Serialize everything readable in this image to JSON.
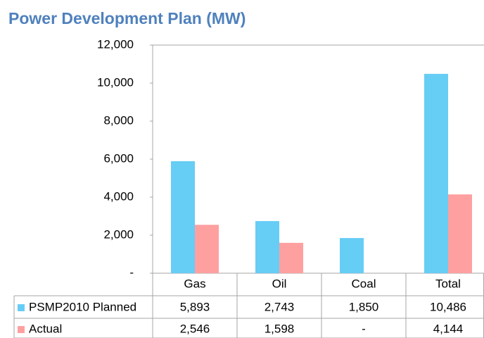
{
  "chart_data": {
    "type": "bar",
    "title": "Power Development Plan (MW)",
    "categories": [
      "Gas",
      "Oil",
      "Coal",
      "Total"
    ],
    "series": [
      {
        "name": "PSMP2010 Planned",
        "color": "#66cdf5",
        "values": [
          5893,
          2743,
          1850,
          10486
        ],
        "value_labels": [
          "5,893",
          "2,743",
          "1,850",
          "10,486"
        ]
      },
      {
        "name": "Actual",
        "color": "#ffa0a0",
        "values": [
          2546,
          1598,
          null,
          4144
        ],
        "value_labels": [
          "2,546",
          "1,598",
          "-",
          "4,144"
        ]
      }
    ],
    "ylim": [
      0,
      12000
    ],
    "yticks": [
      {
        "value": 0,
        "label": "-"
      },
      {
        "value": 2000,
        "label": "2,000"
      },
      {
        "value": 4000,
        "label": "4,000"
      },
      {
        "value": 6000,
        "label": "6,000"
      },
      {
        "value": 8000,
        "label": "8,000"
      },
      {
        "value": 10000,
        "label": "10,000"
      },
      {
        "value": 12000,
        "label": "12,000"
      }
    ],
    "grid": false
  }
}
